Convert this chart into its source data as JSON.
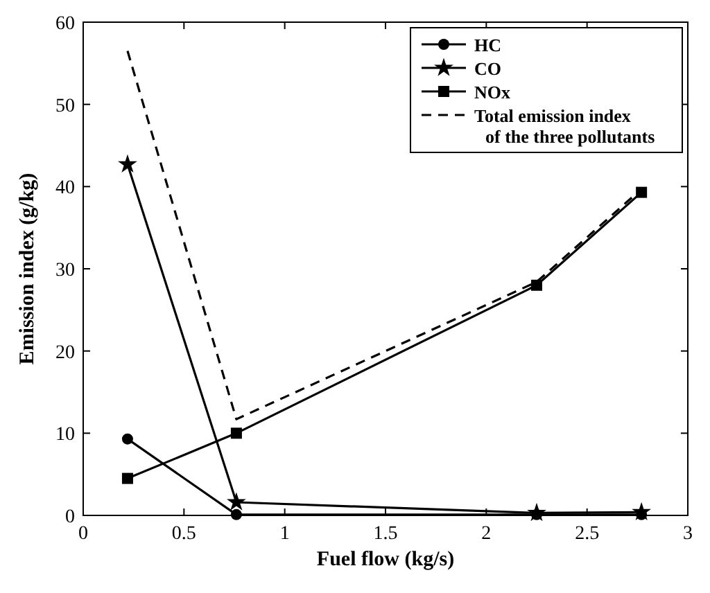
{
  "chart_data": {
    "type": "line",
    "xlabel": "Fuel flow (kg/s)",
    "ylabel": "Emission index (g/kg)",
    "x": [
      0.22,
      0.76,
      2.25,
      2.77
    ],
    "xlim": [
      0,
      3
    ],
    "xticks": [
      0,
      0.5,
      1,
      1.5,
      2,
      2.5,
      3
    ],
    "ylim": [
      0,
      60
    ],
    "yticks": [
      0,
      10,
      20,
      30,
      40,
      50,
      60
    ],
    "grid": false,
    "legend": "top right",
    "line_style": "solid",
    "series": [
      {
        "name": "HC",
        "color": "#000000",
        "marker": "circle",
        "values": [
          9.3,
          0.1,
          0.1,
          0.1
        ]
      },
      {
        "name": "CO",
        "color": "#000000",
        "marker": "star",
        "values": [
          42.7,
          1.6,
          0.3,
          0.4
        ]
      },
      {
        "name": "NOx",
        "color": "#000000",
        "marker": "square",
        "values": [
          4.5,
          10,
          28,
          39.3
        ]
      },
      {
        "name": "Total emission index of the three pollutants",
        "color": "#000000",
        "marker": "none",
        "line_style": "dashed",
        "values": [
          56.5,
          11.7,
          28.4,
          39.7
        ]
      }
    ]
  }
}
